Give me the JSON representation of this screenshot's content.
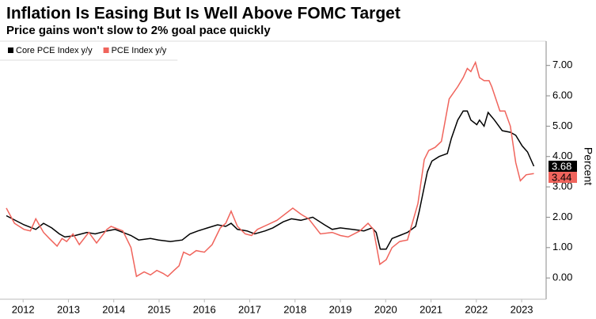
{
  "chart_data": {
    "type": "line",
    "title": "Inflation Is Easing But Is Well Above FOMC Target",
    "subtitle": "Price gains won't slow to 2% goal pace quickly",
    "y_label": "Percent",
    "xlim": [
      2011.49,
      2023.54
    ],
    "ylim": [
      -0.7,
      7.8
    ],
    "xticks": [
      2012,
      2013,
      2014,
      2015,
      2016,
      2017,
      2018,
      2019,
      2020,
      2021,
      2022,
      2023
    ],
    "yticks": [
      {
        "value": 0,
        "label": "0.00"
      },
      {
        "value": 1,
        "label": "1.00"
      },
      {
        "value": 2,
        "label": "2.00"
      },
      {
        "value": 3,
        "label": "3.00"
      },
      {
        "value": 4,
        "label": "4.00"
      },
      {
        "value": 5,
        "label": "5.00"
      },
      {
        "value": 6,
        "label": "6.00"
      },
      {
        "value": 7,
        "label": "7.00"
      }
    ],
    "legend": "top-left",
    "series": [
      {
        "name": "Core PCE Index y/y",
        "color": "#000000",
        "x": [
          2011.63,
          2012.02,
          2012.28,
          2012.45,
          2012.63,
          2012.8,
          2012.92,
          2013.15,
          2013.41,
          2013.59,
          2013.85,
          2014.03,
          2014.2,
          2014.38,
          2014.55,
          2014.81,
          2014.99,
          2015.25,
          2015.51,
          2015.68,
          2015.86,
          2016.07,
          2016.29,
          2016.47,
          2016.59,
          2016.73,
          2016.94,
          2017.11,
          2017.34,
          2017.51,
          2017.74,
          2017.92,
          2018.13,
          2018.39,
          2018.65,
          2018.82,
          2019.0,
          2019.26,
          2019.52,
          2019.7,
          2019.79,
          2019.88,
          2020.01,
          2020.14,
          2020.31,
          2020.48,
          2020.66,
          2020.74,
          2020.85,
          2020.92,
          2021.02,
          2021.18,
          2021.36,
          2021.45,
          2021.59,
          2021.71,
          2021.8,
          2021.88,
          2022.01,
          2022.07,
          2022.17,
          2022.26,
          2022.4,
          2022.57,
          2022.75,
          2022.87,
          2023.01,
          2023.13,
          2023.27
        ],
        "values": [
          2.05,
          1.75,
          1.6,
          1.8,
          1.65,
          1.45,
          1.35,
          1.4,
          1.5,
          1.45,
          1.55,
          1.6,
          1.5,
          1.4,
          1.25,
          1.3,
          1.25,
          1.2,
          1.25,
          1.45,
          1.55,
          1.65,
          1.75,
          1.7,
          1.8,
          1.6,
          1.55,
          1.45,
          1.55,
          1.65,
          1.85,
          1.95,
          1.9,
          2.0,
          1.75,
          1.6,
          1.65,
          1.6,
          1.55,
          1.65,
          1.5,
          0.95,
          0.95,
          1.3,
          1.4,
          1.5,
          1.7,
          2.2,
          3.0,
          3.5,
          3.85,
          4.0,
          4.1,
          4.6,
          5.2,
          5.5,
          5.5,
          5.2,
          5.05,
          5.2,
          5.0,
          5.45,
          5.2,
          4.85,
          4.8,
          4.7,
          4.35,
          4.15,
          3.68
        ]
      },
      {
        "name": "PCE Index y/y",
        "color": "#f0645c",
        "x": [
          2011.63,
          2011.81,
          2012.02,
          2012.16,
          2012.28,
          2012.45,
          2012.58,
          2012.75,
          2012.86,
          2012.96,
          2013.1,
          2013.24,
          2013.45,
          2013.62,
          2013.85,
          2013.94,
          2014.2,
          2014.38,
          2014.5,
          2014.67,
          2014.81,
          2014.95,
          2015.09,
          2015.19,
          2015.33,
          2015.44,
          2015.54,
          2015.68,
          2015.82,
          2016.0,
          2016.17,
          2016.35,
          2016.47,
          2016.59,
          2016.73,
          2016.9,
          2017.04,
          2017.17,
          2017.39,
          2017.6,
          2017.95,
          2018.13,
          2018.3,
          2018.56,
          2018.82,
          2019.0,
          2019.17,
          2019.43,
          2019.61,
          2019.73,
          2019.87,
          2020.01,
          2020.14,
          2020.31,
          2020.48,
          2020.71,
          2020.85,
          2020.95,
          2021.09,
          2021.23,
          2021.4,
          2021.59,
          2021.71,
          2021.8,
          2021.88,
          2021.98,
          2022.07,
          2022.17,
          2022.28,
          2022.34,
          2022.52,
          2022.63,
          2022.75,
          2022.87,
          2022.97,
          2023.1,
          2023.27
        ],
        "values": [
          2.3,
          1.8,
          1.6,
          1.55,
          1.95,
          1.5,
          1.3,
          1.05,
          1.3,
          1.2,
          1.45,
          1.1,
          1.5,
          1.15,
          1.6,
          1.7,
          1.55,
          1.0,
          0.05,
          0.2,
          0.1,
          0.25,
          0.15,
          0.05,
          0.25,
          0.4,
          0.85,
          0.75,
          0.9,
          0.85,
          1.1,
          1.65,
          1.8,
          2.2,
          1.7,
          1.45,
          1.4,
          1.6,
          1.75,
          1.9,
          2.3,
          2.1,
          1.95,
          1.45,
          1.5,
          1.4,
          1.35,
          1.55,
          1.8,
          1.6,
          0.45,
          0.6,
          1.0,
          1.2,
          1.25,
          2.45,
          3.9,
          4.2,
          4.3,
          4.5,
          5.9,
          6.3,
          6.6,
          6.9,
          6.8,
          7.1,
          6.6,
          6.5,
          6.5,
          6.3,
          5.5,
          5.5,
          5.0,
          3.8,
          3.2,
          3.4,
          3.44
        ]
      }
    ]
  }
}
